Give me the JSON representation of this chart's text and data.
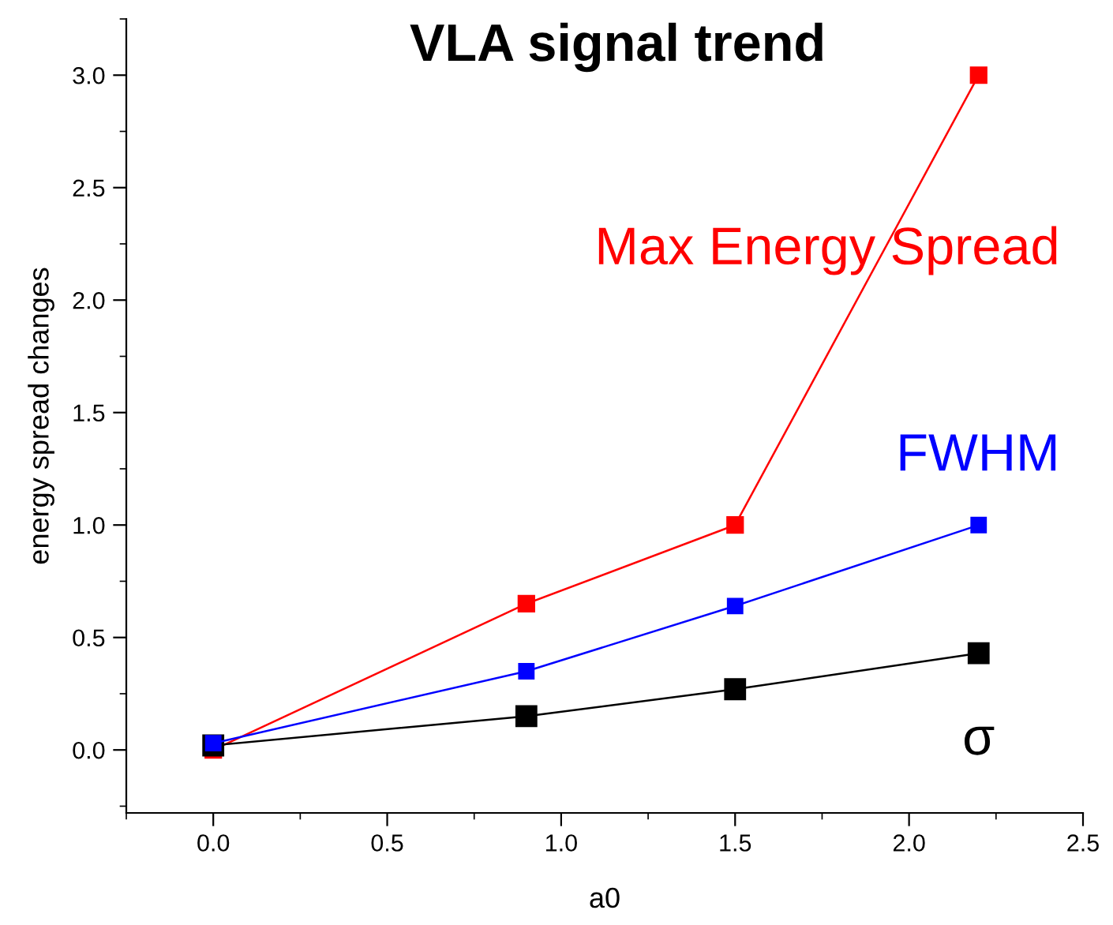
{
  "chart_data": {
    "type": "line",
    "title": "VLA signal trend",
    "xlabel": "a0",
    "ylabel": "energy spread changes",
    "x": [
      0,
      0.9,
      1.5,
      2.2
    ],
    "series": [
      {
        "name": "Max Energy Spread",
        "color": "#ff0000",
        "values": [
          0,
          0.65,
          1.0,
          3.0
        ]
      },
      {
        "name": "FWHM",
        "color": "#0000ff",
        "values": [
          0.03,
          0.35,
          0.64,
          1.0
        ]
      },
      {
        "name": "σ",
        "color": "#000000",
        "values": [
          0.02,
          0.15,
          0.27,
          0.43
        ]
      }
    ],
    "xlim": [
      -0.25,
      2.5
    ],
    "ylim": [
      -0.28,
      3.25
    ],
    "xticks": [
      {
        "value": 0,
        "label": "0.0"
      },
      0.5,
      {
        "value": 1,
        "label": "1.0"
      },
      1.5,
      {
        "value": 2,
        "label": "2.0"
      },
      2.5
    ],
    "yticks": [
      {
        "value": 0,
        "label": "0.0"
      },
      0.5,
      {
        "value": 1,
        "label": "1.0"
      },
      1.5,
      {
        "value": 2,
        "label": "2.0"
      },
      2.5,
      {
        "value": 3,
        "label": "3.0"
      }
    ],
    "marker": "square",
    "line_style": "solid",
    "grid": false,
    "legend": false
  }
}
